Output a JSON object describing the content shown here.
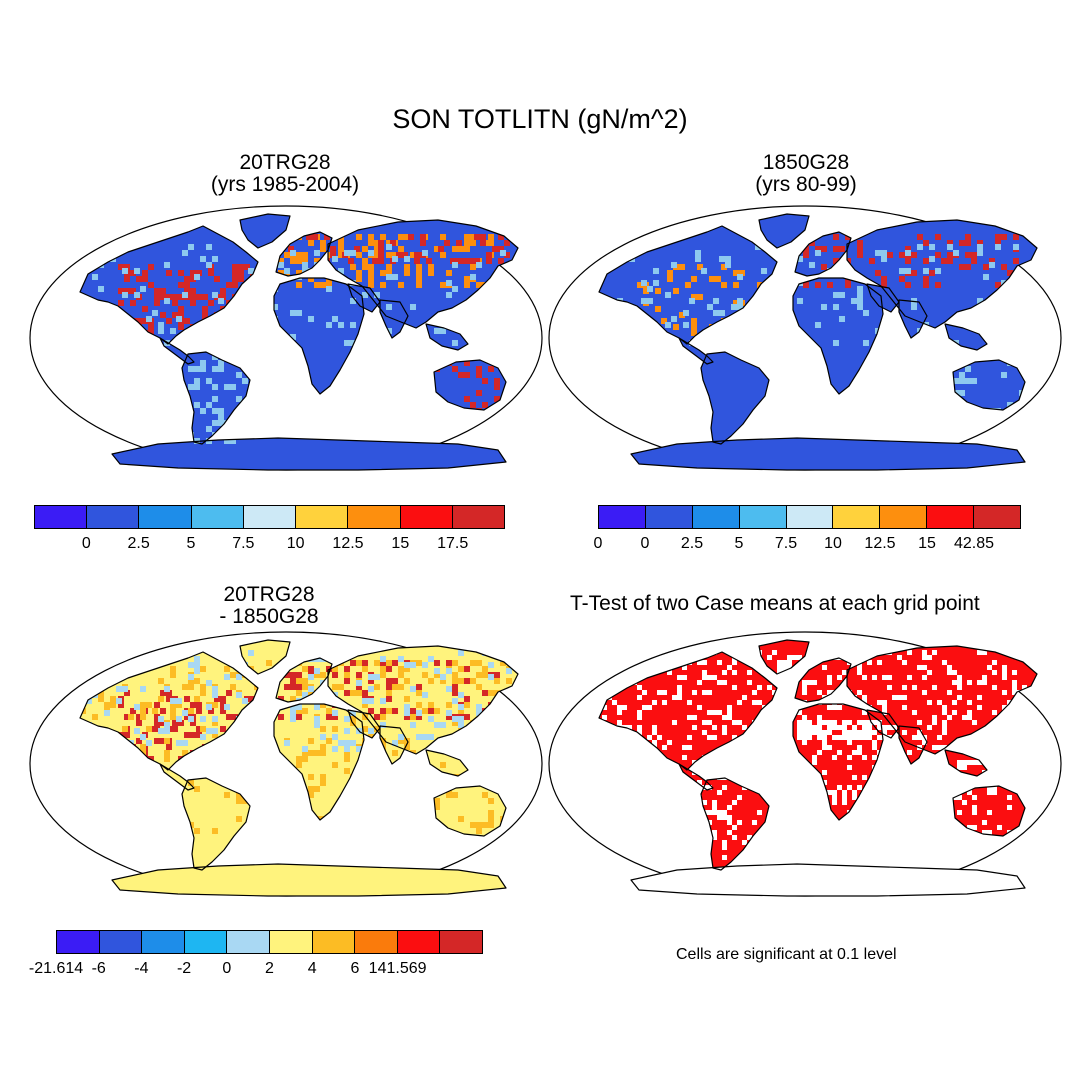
{
  "title": "SON TOTLITN (gN/m^2)",
  "panels": [
    {
      "id": "case1",
      "title_line1": "20TRG28",
      "title_line2": "(yrs 1985-2004)",
      "colorbar": {
        "colors": [
          "#3b1cf5",
          "#3055dd",
          "#1e8de9",
          "#4dbcef",
          "#cde9f6",
          "#ffd23c",
          "#fd8f0e",
          "#fb0e10",
          "#d42727"
        ],
        "labels": [
          "0",
          "2.5",
          "5",
          "7.5",
          "10",
          "12.5",
          "15",
          "17.5"
        ]
      }
    },
    {
      "id": "case2",
      "title_line1": "1850G28",
      "title_line2": "(yrs 80-99)",
      "colorbar": {
        "colors": [
          "#3b1cf5",
          "#3055dd",
          "#1e8de9",
          "#4dbcef",
          "#cde9f6",
          "#ffd23c",
          "#fd8f0e",
          "#fb0e10",
          "#d42727"
        ],
        "labels": [
          "0",
          "0",
          "2.5",
          "5",
          "7.5",
          "10",
          "12.5",
          "15",
          "42.85"
        ]
      }
    },
    {
      "id": "diff",
      "title_line1": "20TRG28",
      "title_line2": "- 1850G28",
      "colorbar": {
        "colors": [
          "#3b1cf5",
          "#3055dd",
          "#1e8de9",
          "#1eb6f2",
          "#a9d8f3",
          "#fff37d",
          "#fcbc24",
          "#fa7b0c",
          "#fb0e10",
          "#d42727"
        ],
        "labels": [
          "-21.614",
          "-6",
          "-4",
          "-2",
          "0",
          "2",
          "4",
          "6",
          "141.569"
        ]
      }
    },
    {
      "id": "ttest",
      "title": "T-Test of two Case means at each grid point",
      "note": "Cells are significant at 0.1 level"
    }
  ],
  "map_colors": {
    "ocean": "#ffffff",
    "outline": "#000000",
    "case_land": "#3055dd",
    "case_light": "#8ec9ef",
    "case_warm": "#fd8f0e",
    "case_hot": "#d42727",
    "diff_land": "#fff37d",
    "diff_warm": "#fcbc24",
    "diff_hot": "#d42727",
    "diff_cool": "#a9d8f3",
    "sig": "#fb0e10"
  }
}
